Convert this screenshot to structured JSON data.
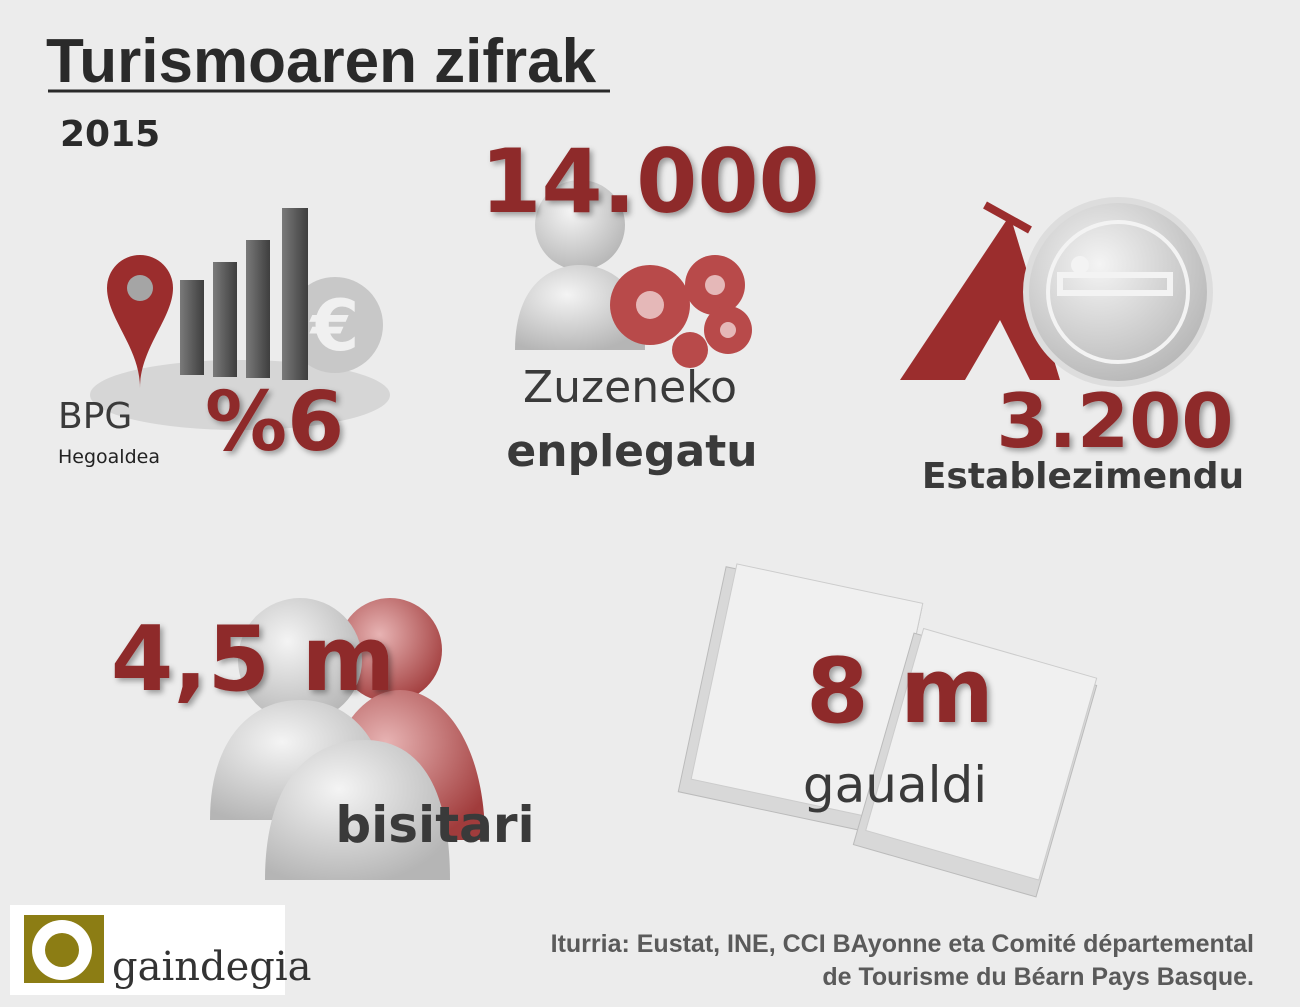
{
  "header": {
    "title": "Turismoaren zifrak",
    "year": "2015"
  },
  "stats": [
    {
      "label": "BPG",
      "sublabel": "Hegoaldea",
      "value": "%6"
    },
    {
      "value": "14.000",
      "label": "Zuzeneko",
      "sublabel": "enplegatu"
    },
    {
      "value": "3.200",
      "label": "Establezimendu"
    },
    {
      "value": "4,5 m",
      "label": "bisitari"
    },
    {
      "value": "8 m",
      "label": "gaualdi"
    }
  ],
  "footer": {
    "logo": "gaindegia",
    "source": [
      "Iturria: Eustat, INE, CCI BAyonne eta Comité départemental",
      "de Tourisme du Béarn Pays Basque."
    ]
  }
}
